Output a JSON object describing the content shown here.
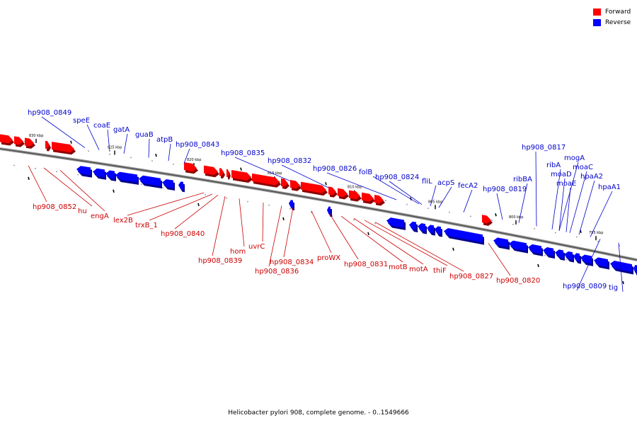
{
  "legend": {
    "forward_label": "Forward",
    "reverse_label": "Reverse",
    "forward_color": "#ff0000",
    "reverse_color": "#0000ff"
  },
  "caption": "Helicobacter pylori 908, complete genome. - 0..1549666",
  "axis_ticks": [
    "830 kbp",
    "825 kbp",
    "820 kbp",
    "815 kbp",
    "810 kbp",
    "805 kbp",
    "800 kbp",
    "795 kbp"
  ],
  "forward_labels": [
    "hp908_0852",
    "hu",
    "engA",
    "lex2B",
    "trxB_1",
    "hp908_0840",
    "hp908_0839",
    "hom",
    "uvrC",
    "hp908_0836",
    "hp908_0834",
    "proWX",
    "hp908_0831",
    "motB",
    "motA",
    "thiF",
    "hp908_0827",
    "hp908_0820"
  ],
  "reverse_labels": [
    "hp908_0849",
    "speE",
    "coaE",
    "gatA",
    "guaB",
    "atpB",
    "hp908_0843",
    "hp908_0835",
    "hp908_0832",
    "hp908_0826",
    "folB",
    "hp908_0824",
    "fliL",
    "acpS",
    "fecA2",
    "hp908_0819",
    "hp908_0817",
    "ribBA",
    "ribA",
    "mogA",
    "moaD",
    "moaC",
    "moaE",
    "hpaA2",
    "hpaA1",
    "hp908_0809",
    "tig"
  ]
}
